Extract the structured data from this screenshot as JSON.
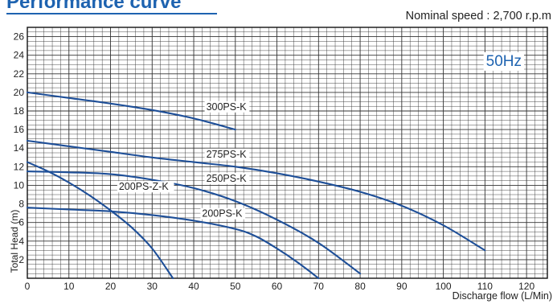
{
  "header": {
    "title": "Performance curve",
    "nominal_speed": "Nominal speed : 2,700 r.p.m"
  },
  "colors": {
    "curve": "#1e4f98",
    "badge_text": "#1e63b0",
    "grid": "#333333"
  },
  "chart_data": {
    "type": "line",
    "title": "",
    "frequency_label": "50Hz",
    "xlabel": "Discharge flow (L/Min)",
    "ylabel": "Total Head (m)",
    "xlim": [
      0,
      125
    ],
    "ylim": [
      0,
      27
    ],
    "x_ticks": [
      0,
      10,
      20,
      30,
      40,
      50,
      60,
      70,
      80,
      90,
      100,
      110,
      120
    ],
    "y_ticks": [
      2,
      4,
      6,
      8,
      10,
      12,
      14,
      16,
      18,
      20,
      22,
      24,
      26
    ],
    "grid": true,
    "series": [
      {
        "name": "300PS-K",
        "points": [
          [
            0,
            20
          ],
          [
            10,
            19.4
          ],
          [
            20,
            18.8
          ],
          [
            30,
            18.1
          ],
          [
            40,
            17.2
          ],
          [
            50,
            16
          ]
        ]
      },
      {
        "name": "275PS-K",
        "points": [
          [
            0,
            14.8
          ],
          [
            10,
            14.2
          ],
          [
            20,
            13.6
          ],
          [
            30,
            13.0
          ],
          [
            40,
            12.5
          ],
          [
            50,
            12.0
          ],
          [
            60,
            11.3
          ],
          [
            70,
            10.4
          ],
          [
            80,
            9.3
          ],
          [
            90,
            7.8
          ],
          [
            100,
            5.7
          ],
          [
            110,
            3
          ]
        ]
      },
      {
        "name": "250PS-K",
        "points": [
          [
            0,
            11.5
          ],
          [
            10,
            11.4
          ],
          [
            20,
            11.2
          ],
          [
            30,
            10.6
          ],
          [
            40,
            9.7
          ],
          [
            50,
            8.3
          ],
          [
            60,
            6.3
          ],
          [
            70,
            3.8
          ],
          [
            80,
            0.5
          ]
        ]
      },
      {
        "name": "200PS-K",
        "points": [
          [
            0,
            7.6
          ],
          [
            10,
            7.4
          ],
          [
            20,
            7.2
          ],
          [
            30,
            6.8
          ],
          [
            40,
            6.2
          ],
          [
            50,
            5.3
          ],
          [
            55,
            4.5
          ],
          [
            60,
            3.2
          ],
          [
            65,
            1.7
          ],
          [
            70,
            0
          ]
        ]
      },
      {
        "name": "200PS-Z-K",
        "points": [
          [
            0,
            12.5
          ],
          [
            5,
            11.5
          ],
          [
            10,
            10.3
          ],
          [
            15,
            8.9
          ],
          [
            20,
            7.3
          ],
          [
            25,
            5.5
          ],
          [
            30,
            3.2
          ],
          [
            35,
            0
          ]
        ]
      }
    ],
    "annotations": [
      "300PS-K",
      "275PS-K",
      "250PS-K",
      "200PS-Z-K",
      "200PS-K"
    ]
  }
}
